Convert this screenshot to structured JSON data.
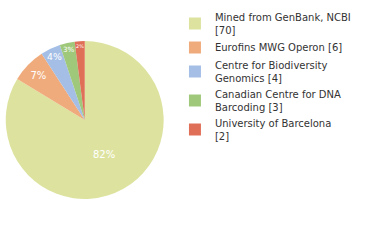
{
  "chart_data": {
    "type": "pie",
    "categories": [
      "Mined from GenBank, NCBI [70]",
      "Eurofins MWG Operon [6]",
      "Centre for Biodiversity Genomics [4]",
      "Canadian Centre for DNA Barcoding [3]",
      "University of Barcelona [2]"
    ],
    "values": [
      82,
      7,
      4,
      3,
      2
    ],
    "value_labels": [
      "82%",
      "7%",
      "4%",
      "3%",
      "2%"
    ],
    "colors": [
      "#dde39f",
      "#f0ab7c",
      "#a4bee6",
      "#a0c87a",
      "#e06f58"
    ],
    "data_labels": true,
    "legend": "right"
  }
}
